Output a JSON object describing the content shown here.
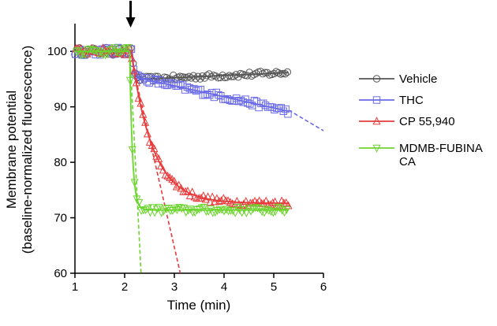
{
  "chart_data": {
    "type": "scatter",
    "title": "",
    "xlabel": "Time (min)",
    "ylabel_line1": "Membrane potential",
    "ylabel_line2": "(baseline-normalized fluorescence)",
    "xlim": [
      1,
      6
    ],
    "ylim": [
      60,
      105
    ],
    "xticks": [
      1,
      2,
      3,
      4,
      5,
      6
    ],
    "yticks": [
      60,
      70,
      80,
      90,
      100
    ],
    "arrow_x": 2.12,
    "series": [
      {
        "name": "Vehicle",
        "label_lines": [
          "Vehicle"
        ],
        "color": "#555555",
        "marker": "circle",
        "baseline": 100,
        "drop_start": 2.15,
        "plateau": 94.9,
        "rate": 25,
        "linear_slope": 0.4,
        "x_end": 5.3,
        "extrapolation": null
      },
      {
        "name": "THC",
        "label_lines": [
          "THC"
        ],
        "color": "#6a6ae8",
        "marker": "square",
        "baseline": 100,
        "drop_start": 2.15,
        "plateau": 95.5,
        "rate": 30,
        "linear_slope": -2.0,
        "x_end": 5.3,
        "extrapolation": {
          "x_start": 5.3,
          "x_end": 6.0,
          "y_start": 89.4,
          "y_end": 85.7
        }
      },
      {
        "name": "CP 55,940",
        "label_lines": [
          "CP 55,940"
        ],
        "color": "#e83b3b",
        "marker": "triangle-up",
        "baseline": 100,
        "drop_start": 2.13,
        "plateau": 72.6,
        "rate": 2.3,
        "linear_slope": 0,
        "x_end": 5.3,
        "extrapolation": {
          "x_start": 2.2,
          "x_end": 3.12,
          "y_start": 96.0,
          "y_end": 60.0
        }
      },
      {
        "name": "MDMB-FUBINACA",
        "label_lines": [
          "MDMB-FUBINA",
          "CA"
        ],
        "color": "#6bd42d",
        "marker": "triangle-down",
        "baseline": 100,
        "drop_start": 2.1,
        "plateau": 71.4,
        "rate": 18,
        "linear_slope": 0,
        "x_end": 5.3,
        "extrapolation": {
          "x_start": 2.1,
          "x_end": 2.33,
          "y_start": 100.5,
          "y_end": 60.0
        }
      }
    ]
  }
}
